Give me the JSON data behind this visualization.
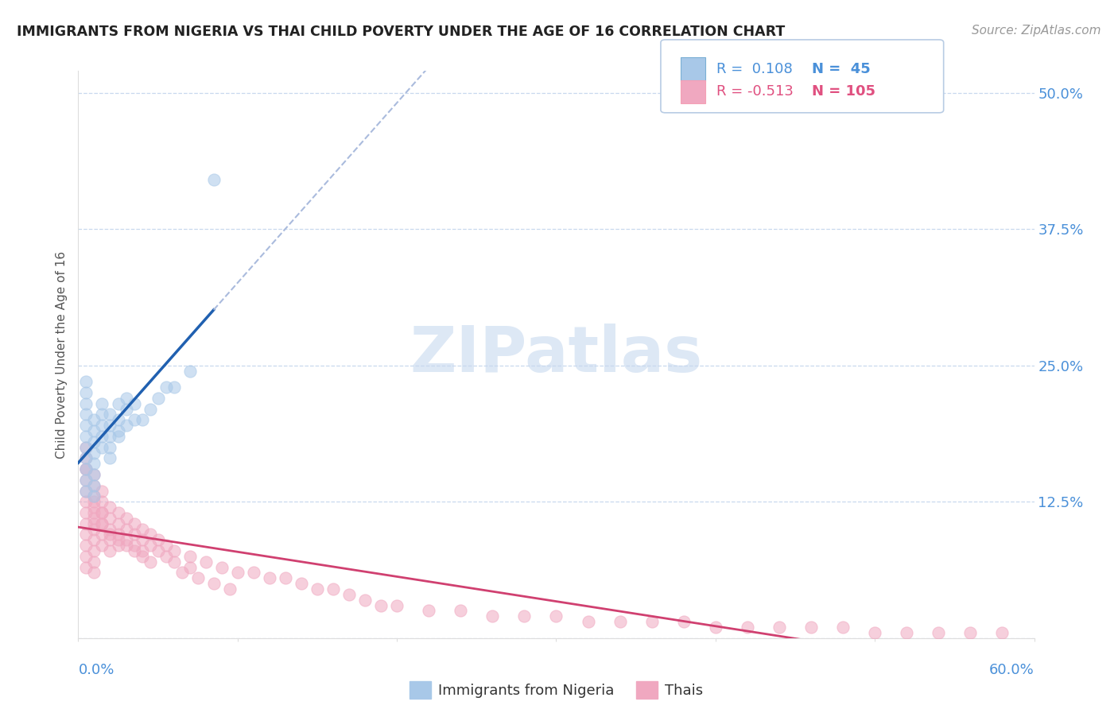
{
  "title": "IMMIGRANTS FROM NIGERIA VS THAI CHILD POVERTY UNDER THE AGE OF 16 CORRELATION CHART",
  "source": "Source: ZipAtlas.com",
  "ylabel": "Child Poverty Under the Age of 16",
  "right_yticks": [
    0.0,
    0.125,
    0.25,
    0.375,
    0.5
  ],
  "right_ytick_labels": [
    "",
    "12.5%",
    "25.0%",
    "37.5%",
    "50.0%"
  ],
  "xlim": [
    0.0,
    0.6
  ],
  "ylim": [
    0.0,
    0.52
  ],
  "legend_r1": "R =  0.108",
  "legend_n1": "N =  45",
  "legend_r2": "R = -0.513",
  "legend_n2": "N = 105",
  "color_blue": "#a8c8e8",
  "color_pink": "#f0a8c0",
  "color_blue_text": "#4a90d9",
  "color_pink_text": "#e05080",
  "color_trend_line_blue": "#2060b0",
  "color_trend_line_pink": "#d04070",
  "watermark_color": "#dde8f5",
  "nigeria_x": [
    0.005,
    0.005,
    0.005,
    0.005,
    0.005,
    0.005,
    0.005,
    0.005,
    0.005,
    0.005,
    0.005,
    0.01,
    0.01,
    0.01,
    0.01,
    0.01,
    0.01,
    0.01,
    0.01,
    0.015,
    0.015,
    0.015,
    0.015,
    0.015,
    0.02,
    0.02,
    0.02,
    0.02,
    0.02,
    0.025,
    0.025,
    0.025,
    0.025,
    0.03,
    0.03,
    0.03,
    0.035,
    0.035,
    0.04,
    0.045,
    0.05,
    0.055,
    0.06,
    0.07,
    0.085
  ],
  "nigeria_y": [
    0.175,
    0.185,
    0.195,
    0.205,
    0.215,
    0.165,
    0.155,
    0.145,
    0.135,
    0.225,
    0.235,
    0.18,
    0.19,
    0.2,
    0.17,
    0.16,
    0.15,
    0.14,
    0.13,
    0.185,
    0.195,
    0.205,
    0.175,
    0.215,
    0.185,
    0.195,
    0.205,
    0.175,
    0.165,
    0.185,
    0.2,
    0.215,
    0.19,
    0.195,
    0.21,
    0.22,
    0.2,
    0.215,
    0.2,
    0.21,
    0.22,
    0.23,
    0.23,
    0.245,
    0.42
  ],
  "thai_x": [
    0.005,
    0.005,
    0.005,
    0.005,
    0.005,
    0.005,
    0.005,
    0.005,
    0.005,
    0.005,
    0.01,
    0.01,
    0.01,
    0.01,
    0.01,
    0.01,
    0.01,
    0.01,
    0.01,
    0.01,
    0.015,
    0.015,
    0.015,
    0.015,
    0.015,
    0.015,
    0.02,
    0.02,
    0.02,
    0.02,
    0.02,
    0.025,
    0.025,
    0.025,
    0.025,
    0.03,
    0.03,
    0.03,
    0.035,
    0.035,
    0.035,
    0.04,
    0.04,
    0.04,
    0.045,
    0.045,
    0.05,
    0.05,
    0.055,
    0.055,
    0.06,
    0.06,
    0.07,
    0.07,
    0.08,
    0.09,
    0.1,
    0.11,
    0.12,
    0.13,
    0.14,
    0.15,
    0.16,
    0.17,
    0.18,
    0.19,
    0.2,
    0.22,
    0.24,
    0.26,
    0.28,
    0.3,
    0.32,
    0.34,
    0.36,
    0.38,
    0.4,
    0.42,
    0.44,
    0.46,
    0.48,
    0.5,
    0.52,
    0.54,
    0.56,
    0.58,
    0.005,
    0.005,
    0.005,
    0.01,
    0.01,
    0.01,
    0.015,
    0.015,
    0.02,
    0.025,
    0.03,
    0.035,
    0.04,
    0.045,
    0.065,
    0.075,
    0.085,
    0.095
  ],
  "thai_y": [
    0.135,
    0.125,
    0.115,
    0.105,
    0.095,
    0.145,
    0.155,
    0.085,
    0.075,
    0.065,
    0.13,
    0.12,
    0.11,
    0.1,
    0.09,
    0.14,
    0.15,
    0.08,
    0.07,
    0.06,
    0.125,
    0.115,
    0.105,
    0.095,
    0.085,
    0.135,
    0.12,
    0.11,
    0.1,
    0.09,
    0.08,
    0.115,
    0.105,
    0.095,
    0.085,
    0.11,
    0.1,
    0.09,
    0.105,
    0.095,
    0.085,
    0.1,
    0.09,
    0.08,
    0.095,
    0.085,
    0.09,
    0.08,
    0.085,
    0.075,
    0.08,
    0.07,
    0.075,
    0.065,
    0.07,
    0.065,
    0.06,
    0.06,
    0.055,
    0.055,
    0.05,
    0.045,
    0.045,
    0.04,
    0.035,
    0.03,
    0.03,
    0.025,
    0.025,
    0.02,
    0.02,
    0.02,
    0.015,
    0.015,
    0.015,
    0.015,
    0.01,
    0.01,
    0.01,
    0.01,
    0.01,
    0.005,
    0.005,
    0.005,
    0.005,
    0.005,
    0.175,
    0.165,
    0.155,
    0.125,
    0.115,
    0.105,
    0.115,
    0.105,
    0.095,
    0.09,
    0.085,
    0.08,
    0.075,
    0.07,
    0.06,
    0.055,
    0.05,
    0.045
  ]
}
